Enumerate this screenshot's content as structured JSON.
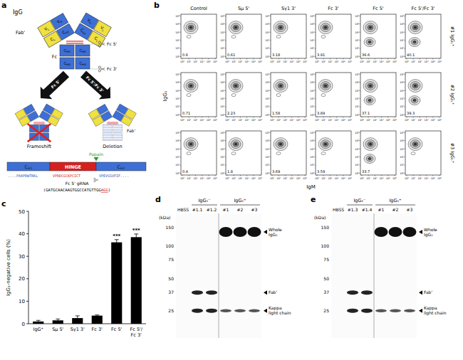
{
  "panel_labels": [
    "a",
    "b",
    "c",
    "d",
    "e"
  ],
  "diagram": {
    "title": "IgG",
    "fab": "Fab'",
    "fc": "Fc",
    "domains": {
      "vh": "VH",
      "vl": "VL",
      "ch1": "CH1",
      "cl": "CL",
      "ch2": "CH2",
      "ch3": "CH3"
    },
    "cut_sites": [
      "Fc 5'",
      "Fc 3'"
    ],
    "arrows": [
      "Fc 5'",
      "Fc 5'/Fc 3'"
    ],
    "outcomes": [
      "Frameshift",
      "Deletion"
    ],
    "outcome_fab": "Fab'",
    "enzyme": "Papain",
    "gene": {
      "segments": [
        "CH1",
        "HINGE",
        "CH2"
      ],
      "sequences": [
        "....PAAPRWTRKL",
        "VPRDCGCKPCICT",
        "VPEVSSVFIF...."
      ]
    },
    "grna_label": "Fc 5' gRNA",
    "grna": "(GATGCAACAAGTGGCCATGTTGG",
    "pam": "AGG",
    "grna_end": ")"
  },
  "flow": {
    "columns": [
      "Control",
      "Sμ 5'",
      "Sγ1 3'",
      "Fc 3'",
      "Fc 5'",
      "Fc 5'/Fc 3'"
    ],
    "rows": [
      "#1 IgG₁⁺",
      "#2 IgG₁⁺",
      "#3 IgG₁⁺"
    ],
    "x_label": "IgM",
    "y_label": "IgG₁",
    "axis_ticks": [
      "10⁰",
      "10¹",
      "10²",
      "10³",
      "10⁴",
      "10⁵"
    ],
    "gate_percent": [
      [
        0.6,
        0.61,
        3.18,
        3.91,
        36.6,
        40.1
      ],
      [
        0.71,
        2.23,
        1.58,
        3.89,
        37.1,
        39.3
      ],
      [
        0.4,
        1.8,
        3.69,
        3.59,
        33.7,
        null
      ]
    ]
  },
  "chart_data": {
    "type": "bar",
    "categories": [
      "IgG⁺",
      "Sμ 5'",
      "Sγ1 3'",
      "Fc 3'",
      "Fc 5'",
      "Fc 5'/Fc 3'"
    ],
    "values": [
      1.0,
      1.5,
      2.5,
      3.6,
      36.2,
      38.5
    ],
    "errors": [
      0.5,
      0.6,
      1.0,
      0.3,
      1.2,
      1.4
    ],
    "color": "#000000",
    "ylim": [
      0,
      50
    ],
    "yticks": [
      0,
      10,
      20,
      30,
      40,
      50
    ],
    "y_label": "IgG₁-negative cells (%)",
    "annotations": [
      {
        "category": "Fc 5'",
        "text": "***"
      },
      {
        "category": "Fc 5'/Fc 3'",
        "text": "***"
      }
    ]
  },
  "blots": [
    {
      "unit": "(kDa)",
      "markers": [
        150,
        100,
        75,
        50,
        37,
        25
      ],
      "lanes": [
        "HBSS",
        "#1.1",
        "#1.2",
        "#1",
        "#2",
        "#3"
      ],
      "groups": [
        {
          "label": "IgG₁⁻",
          "lanes": [
            "#1.1",
            "#1.2"
          ]
        },
        {
          "label": "IgG₁⁺",
          "lanes": [
            "#1",
            "#2",
            "#3"
          ]
        }
      ],
      "bands": [
        "Whole IgG₁",
        "Fab'",
        "Kappa light chain"
      ]
    },
    {
      "unit": "(kDa)",
      "markers": [
        150,
        100,
        75,
        50,
        37,
        25
      ],
      "lanes": [
        "HBSS",
        "#1.3",
        "#1.4",
        "#1",
        "#2",
        "#3"
      ],
      "groups": [
        {
          "label": "IgG₁⁻",
          "lanes": [
            "#1.3",
            "#1.4"
          ]
        },
        {
          "label": "IgG₁⁺",
          "lanes": [
            "#1",
            "#2",
            "#3"
          ]
        }
      ],
      "bands": [
        "Whole IgG₁",
        "Fab'",
        "Kappa light chain"
      ]
    }
  ]
}
